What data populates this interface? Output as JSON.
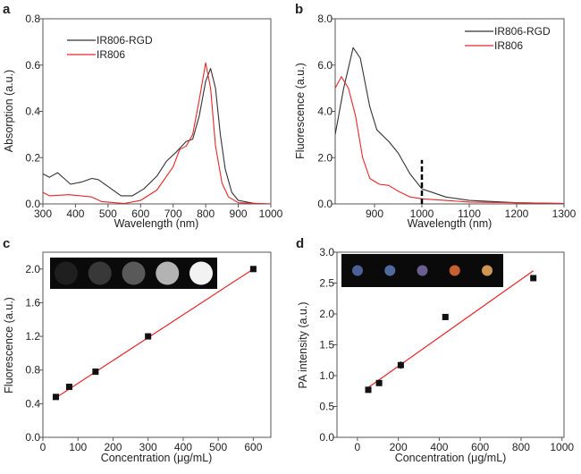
{
  "chart_data": [
    {
      "panel": "a",
      "type": "line",
      "xlabel": "Wavelength (nm)",
      "ylabel": "Absorption (a.u.)",
      "xlim": [
        300,
        1000
      ],
      "ylim": [
        0,
        0.8
      ],
      "xticks": [
        "300",
        "400",
        "500",
        "600",
        "700",
        "800",
        "900",
        "1000"
      ],
      "yticks": [
        "0.0",
        "0.2",
        "0.4",
        "0.6",
        "0.8"
      ],
      "grid": false,
      "legend": "top-left",
      "series": [
        {
          "name": "IR806-RGD",
          "color": "#333333",
          "x": [
            300,
            320,
            345,
            365,
            385,
            420,
            450,
            470,
            500,
            540,
            575,
            610,
            650,
            680,
            710,
            740,
            760,
            780,
            800,
            815,
            830,
            845,
            860,
            880,
            900,
            950,
            1000
          ],
          "y": [
            0.13,
            0.115,
            0.135,
            0.11,
            0.085,
            0.095,
            0.11,
            0.105,
            0.075,
            0.035,
            0.035,
            0.065,
            0.12,
            0.185,
            0.225,
            0.27,
            0.28,
            0.38,
            0.53,
            0.585,
            0.5,
            0.3,
            0.15,
            0.05,
            0.015,
            0.002,
            0
          ]
        },
        {
          "name": "IR806",
          "color": "#e8262a",
          "x": [
            300,
            320,
            380,
            450,
            480,
            550,
            600,
            650,
            700,
            720,
            740,
            760,
            780,
            800,
            815,
            830,
            850,
            870,
            900,
            1000
          ],
          "y": [
            0.05,
            0.035,
            0.04,
            0.03,
            0.01,
            0.002,
            0.015,
            0.06,
            0.16,
            0.235,
            0.25,
            0.3,
            0.45,
            0.61,
            0.5,
            0.25,
            0.09,
            0.03,
            0.005,
            0
          ]
        }
      ]
    },
    {
      "panel": "b",
      "type": "line",
      "xlabel": "Wavelength (nm)",
      "ylabel": "Fluorescence (a.u.)",
      "xlim": [
        817,
        1300
      ],
      "ylim": [
        0,
        8
      ],
      "xticks": [
        "900",
        "1000",
        "1100",
        "1200",
        "1300"
      ],
      "yticks": [
        "0.0",
        "2.0",
        "4.0",
        "6.0",
        "8.0"
      ],
      "grid": false,
      "legend": "top-right",
      "marker_line": {
        "x": 1000,
        "y": [
          0,
          1.9
        ],
        "style": "dashed"
      },
      "series": [
        {
          "name": "IR806-RGD",
          "color": "#333333",
          "x": [
            817,
            835,
            855,
            870,
            890,
            905,
            930,
            950,
            975,
            1000,
            1050,
            1100,
            1200,
            1300
          ],
          "y": [
            3.0,
            5.0,
            6.75,
            6.3,
            4.2,
            3.2,
            2.7,
            2.2,
            1.3,
            0.65,
            0.3,
            0.15,
            0.05,
            0.02
          ]
        },
        {
          "name": "IR806",
          "color": "#e8262a",
          "x": [
            817,
            830,
            845,
            860,
            875,
            890,
            910,
            930,
            950,
            975,
            1000,
            1100,
            1300
          ],
          "y": [
            5.0,
            5.5,
            5.0,
            3.8,
            2.0,
            1.1,
            0.85,
            0.8,
            0.55,
            0.3,
            0.22,
            0.08,
            0.02
          ]
        }
      ]
    },
    {
      "panel": "c",
      "type": "scatter",
      "xlabel": "Concentration (μg/mL)",
      "ylabel": "Fluorescence (a.u.)",
      "xlim": [
        0,
        650
      ],
      "ylim": [
        0,
        2.2
      ],
      "xticks": [
        "0",
        "100",
        "200",
        "300",
        "400",
        "500",
        "600"
      ],
      "yticks": [
        "0.0",
        "0.4",
        "0.8",
        "1.2",
        "1.6",
        "2.0"
      ],
      "grid": false,
      "points": {
        "x": [
          37,
          75,
          150,
          300,
          600
        ],
        "y": [
          0.48,
          0.6,
          0.78,
          1.2,
          2.0
        ]
      },
      "fit": {
        "x": [
          37,
          600
        ],
        "y": [
          0.47,
          2.0
        ],
        "color": "#e8262a"
      },
      "inset_brightness": [
        0.12,
        0.22,
        0.35,
        0.7,
        0.95
      ]
    },
    {
      "panel": "d",
      "type": "scatter",
      "xlabel": "Concentration (μg/mL)",
      "ylabel": "PA intensity (a.u.)",
      "xlim": [
        -100,
        1010
      ],
      "ylim": [
        0,
        3.0
      ],
      "xticks": [
        "0",
        "200",
        "400",
        "600",
        "800",
        "1000"
      ],
      "yticks": [
        "0.0",
        "0.5",
        "1.0",
        "1.5",
        "2.0",
        "2.5",
        "3.0"
      ],
      "grid": false,
      "points": {
        "x": [
          53,
          106,
          212,
          430,
          860
        ],
        "y": [
          0.77,
          0.88,
          1.17,
          1.95,
          2.58
        ],
        "err": [
          0.03,
          0.03,
          0.06,
          0.05,
          0.05
        ]
      },
      "fit": {
        "x": [
          50,
          860
        ],
        "y": [
          0.8,
          2.7
        ],
        "color": "#e8262a"
      },
      "inset_colors": [
        "#5a6fb0",
        "#5d7bb8",
        "#7a6ea8",
        "#e8703a",
        "#f0b060"
      ]
    }
  ]
}
